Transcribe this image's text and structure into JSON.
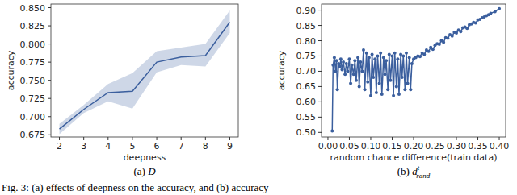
{
  "chart_data": [
    {
      "type": "line",
      "xlabel": "deepness",
      "ylabel": "accuracy",
      "subcaption": {
        "prefix": "(a)",
        "symbol": "D"
      },
      "x": [
        2,
        3,
        4,
        5,
        6,
        7,
        8,
        9
      ],
      "series": [
        {
          "color": "#3b5f9e",
          "values": [
            0.683,
            0.71,
            0.733,
            0.735,
            0.775,
            0.782,
            0.784,
            0.83
          ],
          "lower": [
            0.676,
            0.705,
            0.721,
            0.711,
            0.761,
            0.771,
            0.769,
            0.815
          ],
          "upper": [
            0.69,
            0.716,
            0.745,
            0.76,
            0.79,
            0.795,
            0.8,
            0.846
          ]
        }
      ],
      "xlim": [
        1.65,
        9.35
      ],
      "ylim": [
        0.672,
        0.855
      ],
      "xticks": [
        2,
        3,
        4,
        5,
        6,
        7,
        8,
        9
      ],
      "yticks": [
        {
          "value": 0.675,
          "label": "0.675"
        },
        {
          "value": 0.7,
          "label": "0.700"
        },
        {
          "value": 0.725,
          "label": "0.725"
        },
        {
          "value": 0.75,
          "label": "0.750"
        },
        {
          "value": 0.775,
          "label": "0.775"
        },
        {
          "value": 0.8,
          "label": "0.800"
        },
        {
          "value": 0.825,
          "label": "0.825"
        },
        {
          "value": 0.85,
          "label": "0.850"
        }
      ],
      "grid": false
    },
    {
      "type": "line",
      "marker": "circle",
      "xlabel": "random chance difference(train data)",
      "ylabel": "accuracy",
      "subcaption": {
        "prefix": "(b)",
        "symbol": "d",
        "sup": "t",
        "sub": "rand"
      },
      "x": [
        0.01,
        0.012,
        0.015,
        0.018,
        0.02,
        0.022,
        0.025,
        0.028,
        0.03,
        0.033,
        0.036,
        0.04,
        0.043,
        0.046,
        0.05,
        0.053,
        0.056,
        0.06,
        0.063,
        0.066,
        0.07,
        0.073,
        0.076,
        0.08,
        0.083,
        0.086,
        0.09,
        0.093,
        0.096,
        0.1,
        0.103,
        0.106,
        0.11,
        0.113,
        0.116,
        0.12,
        0.123,
        0.126,
        0.13,
        0.133,
        0.136,
        0.14,
        0.143,
        0.146,
        0.15,
        0.153,
        0.156,
        0.16,
        0.163,
        0.166,
        0.17,
        0.173,
        0.176,
        0.18,
        0.183,
        0.186,
        0.19,
        0.193,
        0.196,
        0.2,
        0.205,
        0.21,
        0.215,
        0.22,
        0.225,
        0.23,
        0.235,
        0.24,
        0.245,
        0.25,
        0.255,
        0.26,
        0.265,
        0.27,
        0.275,
        0.28,
        0.285,
        0.29,
        0.295,
        0.3,
        0.305,
        0.31,
        0.315,
        0.32,
        0.325,
        0.33,
        0.335,
        0.34,
        0.345,
        0.35,
        0.355,
        0.36,
        0.365,
        0.37,
        0.375,
        0.38,
        0.39,
        0.4
      ],
      "series": [
        {
          "color": "#3b5f9e",
          "values": [
            0.505,
            0.72,
            0.745,
            0.7,
            0.735,
            0.64,
            0.725,
            0.715,
            0.74,
            0.705,
            0.73,
            0.69,
            0.725,
            0.7,
            0.74,
            0.66,
            0.72,
            0.69,
            0.735,
            0.67,
            0.745,
            0.65,
            0.73,
            0.7,
            0.77,
            0.64,
            0.76,
            0.665,
            0.745,
            0.62,
            0.755,
            0.68,
            0.74,
            0.63,
            0.75,
            0.66,
            0.76,
            0.625,
            0.745,
            0.69,
            0.735,
            0.64,
            0.755,
            0.67,
            0.75,
            0.62,
            0.76,
            0.65,
            0.74,
            0.625,
            0.755,
            0.68,
            0.75,
            0.64,
            0.76,
            0.66,
            0.745,
            0.64,
            0.725,
            0.74,
            0.745,
            0.75,
            0.748,
            0.76,
            0.755,
            0.77,
            0.765,
            0.778,
            0.772,
            0.785,
            0.79,
            0.788,
            0.8,
            0.795,
            0.81,
            0.808,
            0.82,
            0.815,
            0.828,
            0.825,
            0.835,
            0.83,
            0.842,
            0.845,
            0.84,
            0.852,
            0.855,
            0.86,
            0.858,
            0.868,
            0.87,
            0.875,
            0.878,
            0.882,
            0.885,
            0.89,
            0.895,
            0.905
          ]
        }
      ],
      "xlim": [
        -0.015,
        0.415
      ],
      "ylim": [
        0.485,
        0.92
      ],
      "xticks": [
        {
          "value": 0,
          "label": "0.00"
        },
        {
          "value": 0.05,
          "label": "0.05"
        },
        {
          "value": 0.1,
          "label": "0.10"
        },
        {
          "value": 0.15,
          "label": "0.15"
        },
        {
          "value": 0.2,
          "label": "0.20"
        },
        {
          "value": 0.25,
          "label": "0.25"
        },
        {
          "value": 0.3,
          "label": "0.30"
        },
        {
          "value": 0.35,
          "label": "0.35"
        },
        {
          "value": 0.4,
          "label": "0.40"
        }
      ],
      "yticks": [
        {
          "value": 0.5,
          "label": "0.50"
        },
        {
          "value": 0.55,
          "label": "0.55"
        },
        {
          "value": 0.6,
          "label": "0.60"
        },
        {
          "value": 0.65,
          "label": "0.65"
        },
        {
          "value": 0.7,
          "label": "0.70"
        },
        {
          "value": 0.75,
          "label": "0.75"
        },
        {
          "value": 0.8,
          "label": "0.80"
        },
        {
          "value": 0.85,
          "label": "0.85"
        },
        {
          "value": 0.9,
          "label": "0.90"
        }
      ],
      "grid": false
    }
  ],
  "caption": "Fig. 3: (a) effects of deepness on the accuracy, and (b) accuracy"
}
